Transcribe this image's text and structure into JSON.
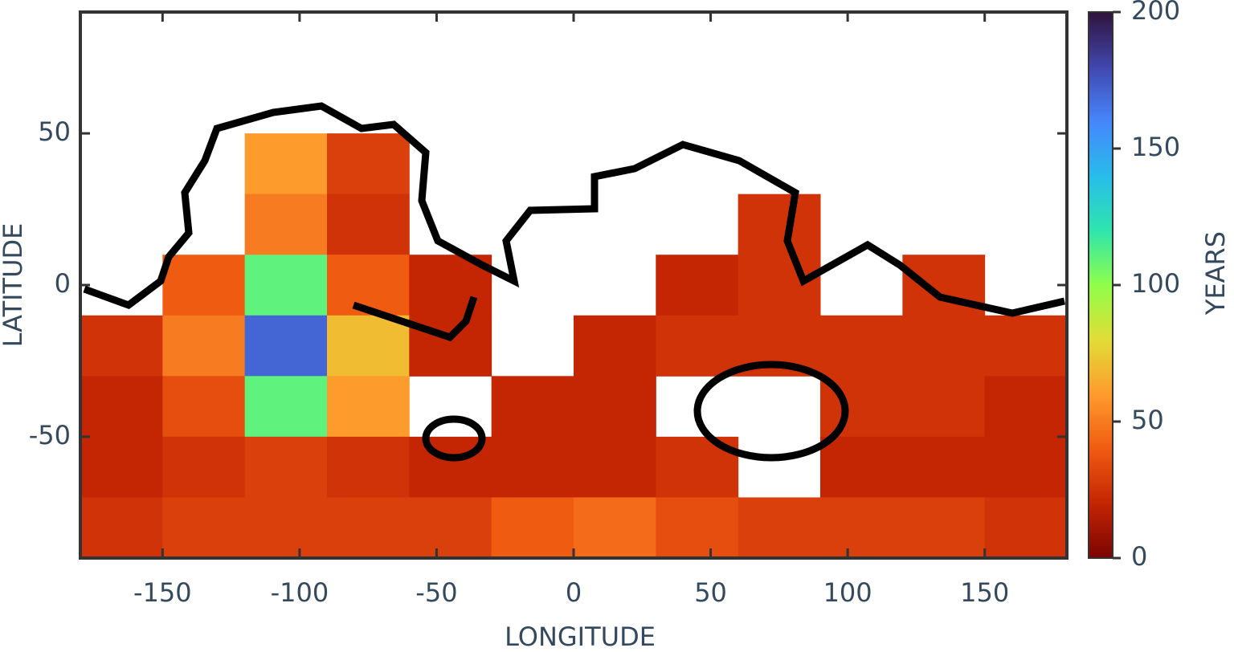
{
  "chart_data": {
    "type": "heatmap",
    "xlabel": "LONGITUDE",
    "ylabel": "LATITUDE",
    "zlabel": "YEARS",
    "xlim": [
      -180,
      180
    ],
    "xticks": [
      -150,
      -100,
      -50,
      0,
      50,
      100,
      150
    ],
    "ylim": [
      -90,
      90
    ],
    "yticks": [
      -50,
      0,
      50
    ],
    "zlim": [
      0,
      200
    ],
    "zticks": [
      0,
      50,
      100,
      150,
      200
    ],
    "colorscale": [
      "#7a0403",
      "#c42503",
      "#f05b12",
      "#fe9b2d",
      "#e1dd37",
      "#8ffe4a",
      "#2ee5ae",
      "#28bceb",
      "#4686fb",
      "#4146ad",
      "#30123b"
    ],
    "x": [
      -165,
      -135,
      -105,
      -75,
      -45,
      -15,
      15,
      45,
      75,
      105,
      135,
      165
    ],
    "y": [
      80,
      60,
      40,
      20,
      0,
      -20,
      -40,
      -60,
      -80
    ],
    "z": [
      [
        null,
        null,
        null,
        null,
        null,
        null,
        null,
        null,
        null,
        null,
        null,
        null
      ],
      [
        null,
        null,
        null,
        null,
        null,
        null,
        null,
        null,
        null,
        null,
        null,
        null
      ],
      [
        null,
        null,
        60,
        30,
        null,
        null,
        null,
        null,
        null,
        null,
        null,
        null
      ],
      [
        null,
        null,
        50,
        25,
        null,
        null,
        null,
        null,
        25,
        null,
        null,
        null
      ],
      [
        null,
        40,
        110,
        40,
        20,
        null,
        null,
        20,
        25,
        null,
        25,
        null
      ],
      [
        25,
        50,
        170,
        70,
        20,
        null,
        20,
        25,
        25,
        25,
        25,
        25
      ],
      [
        20,
        35,
        110,
        60,
        null,
        20,
        20,
        null,
        null,
        25,
        25,
        20
      ],
      [
        20,
        25,
        30,
        25,
        20,
        20,
        20,
        25,
        null,
        20,
        20,
        20
      ],
      [
        25,
        30,
        30,
        30,
        30,
        40,
        45,
        35,
        30,
        30,
        30,
        25
      ]
    ]
  }
}
